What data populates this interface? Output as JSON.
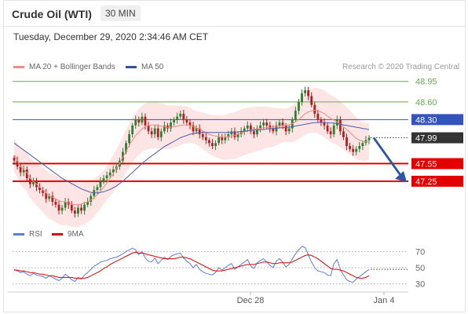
{
  "header": {
    "title": "Crude Oil (WTI)",
    "timeframe": "30 MIN"
  },
  "timestamp": "Tuesday, December 29, 2020 2:34:46 AM CET",
  "legend": {
    "ma20": "MA 20 + Bollinger Bands",
    "ma50": "MA 50",
    "rsi": "RSI",
    "ma9": "9MA"
  },
  "credit": "Research © 2020 Trading Central",
  "colors": {
    "bull": "#2e7d32",
    "bear": "#b71c1c",
    "support": "#e50000",
    "resistance": "#6aa84f",
    "pivot": "#3355bb",
    "current": "#333333",
    "ma20": "#f28b82",
    "ma50": "#4c5fa8",
    "band": "#fde0e0",
    "rsi": "#5b7be8",
    "ma9": "#e00000",
    "arrow": "#2957a4"
  },
  "chart_data": [
    {
      "type": "candlestick",
      "x_ticks": [
        "Dec 28",
        "Jan 4"
      ],
      "ylim": [
        46.7,
        49.0
      ],
      "levels": [
        {
          "label": "48.95",
          "value": 48.95,
          "kind": "resistance"
        },
        {
          "label": "48.60",
          "value": 48.6,
          "kind": "resistance"
        },
        {
          "label": "48.30",
          "value": 48.3,
          "kind": "pivot"
        },
        {
          "label": "47.99",
          "value": 47.99,
          "kind": "current"
        },
        {
          "label": "47.55",
          "value": 47.55,
          "kind": "support"
        },
        {
          "label": "47.25",
          "value": 47.25,
          "kind": "support"
        }
      ],
      "close": [
        47.6,
        47.5,
        47.4,
        47.45,
        47.3,
        47.2,
        47.25,
        47.15,
        47.1,
        47.05,
        46.95,
        47.0,
        46.9,
        46.85,
        46.75,
        46.8,
        46.9,
        46.85,
        46.75,
        46.7,
        46.8,
        46.75,
        46.85,
        46.9,
        47.0,
        47.1,
        47.15,
        47.25,
        47.3,
        47.35,
        47.4,
        47.45,
        47.5,
        47.6,
        47.75,
        47.9,
        48.05,
        48.2,
        48.3,
        48.25,
        48.35,
        48.2,
        48.1,
        48.05,
        48.15,
        48.0,
        48.1,
        48.2,
        48.15,
        48.25,
        48.3,
        48.35,
        48.4,
        48.3,
        48.25,
        48.2,
        48.1,
        48.15,
        48.05,
        48.0,
        47.95,
        47.9,
        47.85,
        47.9,
        48.0,
        47.95,
        48.0,
        48.05,
        48.1,
        48.0,
        48.05,
        48.1,
        48.15,
        48.2,
        48.1,
        48.05,
        48.15,
        48.2,
        48.25,
        48.2,
        48.15,
        48.1,
        48.2,
        48.25,
        48.2,
        48.1,
        48.15,
        48.3,
        48.45,
        48.6,
        48.75,
        48.8,
        48.7,
        48.55,
        48.4,
        48.3,
        48.25,
        48.2,
        48.1,
        48.05,
        48.2,
        48.3,
        48.1,
        48.0,
        47.85,
        47.8,
        47.75,
        47.8,
        47.85,
        47.9,
        47.95,
        47.99
      ],
      "ma20": [
        47.7,
        47.6,
        47.5,
        47.45,
        47.4,
        47.3,
        47.25,
        47.2,
        47.15,
        47.1,
        47.05,
        47.0,
        46.98,
        46.95,
        46.92,
        46.9,
        46.9,
        46.88,
        46.86,
        46.85,
        46.85,
        46.86,
        46.88,
        46.9,
        46.93,
        46.97,
        47.02,
        47.08,
        47.15,
        47.22,
        47.3,
        47.38,
        47.47,
        47.56,
        47.66,
        47.76,
        47.86,
        47.95,
        48.03,
        48.09,
        48.14,
        48.18,
        48.2,
        48.21,
        48.21,
        48.2,
        48.19,
        48.18,
        48.17,
        48.17,
        48.18,
        48.19,
        48.2,
        48.21,
        48.21,
        48.2,
        48.18,
        48.16,
        48.14,
        48.11,
        48.08,
        48.05,
        48.03,
        48.02,
        48.01,
        48.0,
        48.0,
        48.01,
        48.02,
        48.03,
        48.05,
        48.07,
        48.09,
        48.11,
        48.12,
        48.13,
        48.14,
        48.15,
        48.16,
        48.17,
        48.17,
        48.17,
        48.18,
        48.19,
        48.2,
        48.2,
        48.21,
        48.23,
        48.26,
        48.3,
        48.35,
        48.4,
        48.43,
        48.45,
        48.46,
        48.45,
        48.43,
        48.4,
        48.36,
        48.32,
        48.29,
        48.26,
        48.22,
        48.18,
        48.13,
        48.08,
        48.03,
        47.98,
        47.95,
        47.93,
        47.92,
        47.93
      ],
      "ma50": [
        47.9,
        47.86,
        47.82,
        47.78,
        47.74,
        47.7,
        47.66,
        47.62,
        47.58,
        47.54,
        47.5,
        47.46,
        47.42,
        47.38,
        47.34,
        47.3,
        47.27,
        47.24,
        47.21,
        47.18,
        47.15,
        47.12,
        47.1,
        47.08,
        47.06,
        47.05,
        47.05,
        47.06,
        47.07,
        47.09,
        47.11,
        47.14,
        47.17,
        47.21,
        47.25,
        47.3,
        47.35,
        47.4,
        47.45,
        47.5,
        47.55,
        47.6,
        47.64,
        47.68,
        47.72,
        47.76,
        47.8,
        47.84,
        47.87,
        47.9,
        47.93,
        47.96,
        47.99,
        48.01,
        48.03,
        48.05,
        48.06,
        48.07,
        48.08,
        48.08,
        48.08,
        48.08,
        48.08,
        48.08,
        48.08,
        48.08,
        48.08,
        48.08,
        48.08,
        48.09,
        48.09,
        48.1,
        48.1,
        48.11,
        48.11,
        48.12,
        48.12,
        48.13,
        48.13,
        48.14,
        48.14,
        48.15,
        48.15,
        48.16,
        48.16,
        48.17,
        48.17,
        48.18,
        48.19,
        48.2,
        48.21,
        48.22,
        48.23,
        48.24,
        48.25,
        48.25,
        48.25,
        48.25,
        48.25,
        48.24,
        48.24,
        48.23,
        48.22,
        48.21,
        48.2,
        48.19,
        48.18,
        48.17,
        48.16,
        48.15,
        48.14,
        48.13
      ]
    },
    {
      "type": "line",
      "name": "RSI",
      "y_ticks": [
        70,
        50,
        30
      ],
      "ylim": [
        20,
        80
      ],
      "rsi": [
        48,
        46,
        44,
        45,
        42,
        40,
        43,
        41,
        40,
        39,
        37,
        40,
        38,
        36,
        34,
        37,
        42,
        39,
        35,
        33,
        38,
        36,
        41,
        44,
        48,
        52,
        54,
        57,
        58,
        59,
        61,
        62,
        63,
        65,
        67,
        70,
        72,
        74,
        72,
        66,
        70,
        62,
        58,
        57,
        62,
        55,
        59,
        63,
        60,
        64,
        66,
        67,
        68,
        62,
        58,
        55,
        50,
        54,
        48,
        45,
        43,
        42,
        41,
        44,
        50,
        47,
        50,
        53,
        55,
        48,
        51,
        54,
        57,
        60,
        52,
        49,
        56,
        59,
        61,
        57,
        53,
        50,
        58,
        61,
        57,
        51,
        54,
        61,
        67,
        72,
        76,
        75,
        66,
        57,
        50,
        46,
        45,
        44,
        41,
        40,
        55,
        60,
        48,
        41,
        35,
        33,
        32,
        36,
        39,
        42,
        45,
        48
      ],
      "ma9": [
        47,
        47,
        46,
        46,
        45,
        44,
        44,
        43,
        42,
        42,
        41,
        40,
        40,
        39,
        38,
        38,
        38,
        38,
        38,
        37,
        37,
        37,
        37,
        38,
        40,
        42,
        44,
        46,
        49,
        51,
        54,
        56,
        58,
        60,
        62,
        64,
        66,
        68,
        69,
        68,
        68,
        67,
        66,
        65,
        64,
        63,
        62,
        61,
        61,
        61,
        61,
        62,
        63,
        63,
        62,
        61,
        59,
        57,
        55,
        53,
        51,
        49,
        47,
        46,
        46,
        46,
        47,
        48,
        49,
        50,
        51,
        52,
        53,
        54,
        54,
        54,
        55,
        56,
        57,
        57,
        56,
        55,
        55,
        56,
        56,
        56,
        56,
        57,
        59,
        61,
        63,
        65,
        66,
        65,
        63,
        61,
        58,
        55,
        52,
        49,
        48,
        48,
        47,
        46,
        44,
        42,
        40,
        38,
        37,
        37,
        38,
        40
      ]
    }
  ]
}
